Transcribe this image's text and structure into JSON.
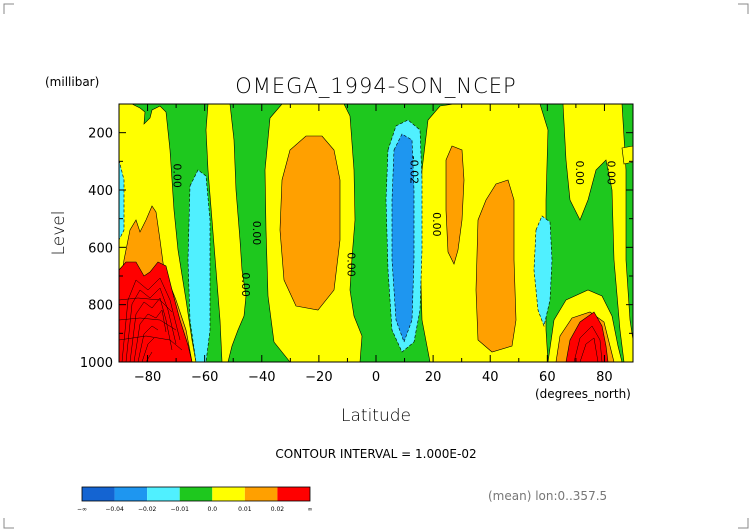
{
  "chart_data": {
    "type": "heatmap",
    "title": "OMEGA_1994-SON_NCEP",
    "xlabel": "Latitude",
    "x_unit": "(degrees_north)",
    "ylabel": "Level",
    "y_unit": "(millibar)",
    "xlim": [
      -90,
      90
    ],
    "ylim": [
      1000,
      100
    ],
    "x_ticks": [
      "-80",
      "-60",
      "-40",
      "-20",
      "0",
      "20",
      "40",
      "60",
      "80"
    ],
    "x_tick_values": [
      -80,
      -60,
      -40,
      -20,
      0,
      20,
      40,
      60,
      80
    ],
    "y_ticks": [
      "200",
      "400",
      "600",
      "800",
      "1000"
    ],
    "y_tick_values": [
      200,
      400,
      600,
      800,
      1000
    ],
    "contour_interval": "CONTOUR INTERVAL = 1.000E-02",
    "footnote": "(mean) lon:0..357.5",
    "contour_labels": [
      {
        "text": "0.00",
        "lat": -71,
        "level": 350
      },
      {
        "text": "0.00",
        "lat": -43,
        "level": 550
      },
      {
        "text": "0.00",
        "lat": -47,
        "level": 730
      },
      {
        "text": "0.00",
        "lat": -10,
        "level": 660
      },
      {
        "text": "-0.02",
        "lat": 12,
        "level": 330
      },
      {
        "text": "0.00",
        "lat": 20,
        "level": 520
      },
      {
        "text": "0.00",
        "lat": 70,
        "level": 340
      },
      {
        "text": "0.00",
        "lat": 81,
        "level": 340
      }
    ],
    "colorbar": {
      "colors": [
        "#1464d2",
        "#1e96f0",
        "#50f0ff",
        "#1ec81e",
        "#ffff00",
        "#ffa000",
        "#ff0000"
      ],
      "labels": [
        "-∞",
        "-0.04",
        "-0.02",
        "-0.01",
        "0.0",
        "0.01",
        "0.02",
        "∞"
      ]
    },
    "regions": [
      {
        "name": "background",
        "fill_index": 3,
        "description": "near zero"
      },
      {
        "name": "sh-polar-high",
        "fill_index": 6,
        "lat_range": [
          -90,
          -66
        ],
        "level_range": [
          660,
          1000
        ]
      },
      {
        "name": "tropical-min",
        "fill_index": 1,
        "lat_range": [
          5,
          16
        ],
        "level_range": [
          150,
          930
        ]
      },
      {
        "name": "nh-polar-high",
        "fill_index": 6,
        "lat_range": [
          66,
          84
        ],
        "level_range": [
          820,
          1000
        ]
      }
    ]
  }
}
